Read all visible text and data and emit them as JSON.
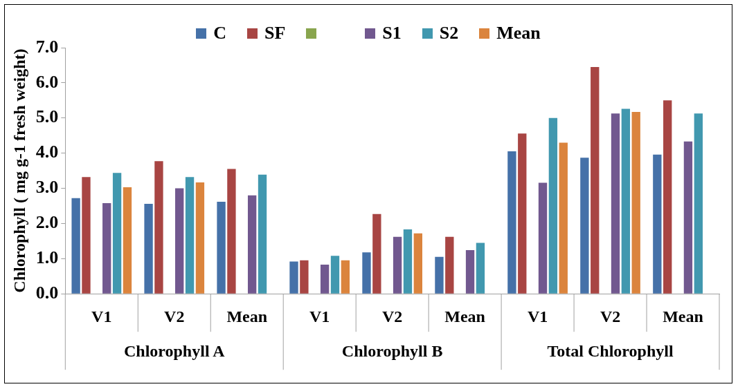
{
  "chart_data": {
    "type": "bar",
    "ylabel": "Chlorophyll ( mg g-1 fresh weight)",
    "categories": [
      "V1",
      "V2",
      "Mean",
      "V1",
      "V2",
      "Mean",
      "V1",
      "V2",
      "Mean"
    ],
    "annotations": [
      "Chlorophyll A",
      "Chlorophyll B",
      "Total Chlorophyll"
    ],
    "series": [
      {
        "name": "C",
        "color": "#4571a8",
        "values": [
          2.72,
          2.56,
          2.62,
          0.92,
          1.18,
          1.05,
          4.05,
          3.87,
          3.96
        ]
      },
      {
        "name": "SF",
        "color": "#a84543",
        "values": [
          3.32,
          3.77,
          3.55,
          0.95,
          2.27,
          1.62,
          4.56,
          6.45,
          5.5
        ]
      },
      {
        "color": "#89a54e",
        "values": [
          null,
          null,
          null,
          null,
          null,
          null,
          null,
          null,
          null
        ]
      },
      {
        "name": "S1",
        "color": "#71588f",
        "values": [
          2.58,
          3.0,
          2.8,
          0.83,
          1.62,
          1.24,
          3.16,
          5.13,
          4.33
        ]
      },
      {
        "name": "S2",
        "color": "#4198af",
        "values": [
          3.44,
          3.32,
          3.39,
          1.08,
          1.83,
          1.45,
          5.0,
          5.26,
          5.13
        ]
      },
      {
        "name": "Mean",
        "color": "#db843d",
        "values": [
          3.03,
          3.17,
          null,
          0.95,
          1.72,
          null,
          4.3,
          5.17,
          null
        ]
      }
    ],
    "ylim": [
      0,
      7
    ],
    "yticks": [
      {
        "value": 0,
        "label": "0.0"
      },
      {
        "value": 1,
        "label": "1.0"
      },
      {
        "value": 2,
        "label": "2.0"
      },
      {
        "value": 3,
        "label": "3.0"
      },
      {
        "value": 4,
        "label": "4.0"
      },
      {
        "value": 5,
        "label": "5.0"
      },
      {
        "value": 6,
        "label": "6.0"
      },
      {
        "value": 7,
        "label": "7.0"
      }
    ],
    "grid": false,
    "legend": "top"
  }
}
